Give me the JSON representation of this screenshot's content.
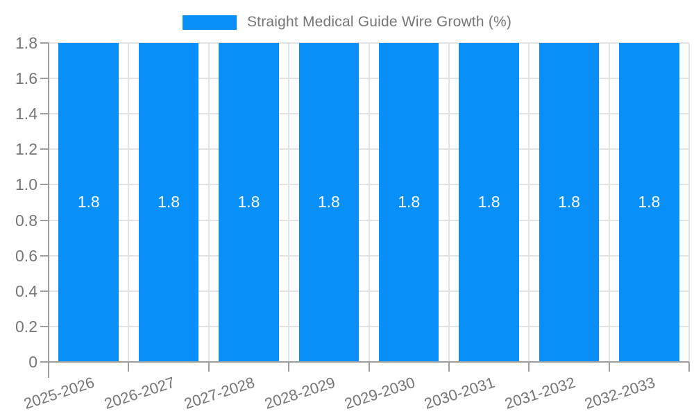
{
  "legend": {
    "label": "Straight Medical Guide Wire Growth (%)"
  },
  "chart_data": {
    "type": "bar",
    "title": "",
    "xlabel": "",
    "ylabel": "",
    "categories": [
      "2025-2026",
      "2026-2027",
      "2027-2028",
      "2028-2029",
      "2029-2030",
      "2030-2031",
      "2031-2032",
      "2032-2033"
    ],
    "series": [
      {
        "name": "Straight Medical Guide Wire Growth (%)",
        "values": [
          1.8,
          1.8,
          1.8,
          1.8,
          1.8,
          1.8,
          1.8,
          1.8
        ]
      }
    ],
    "value_labels": [
      "1.8",
      "1.8",
      "1.8",
      "1.8",
      "1.8",
      "1.8",
      "1.8",
      "1.8"
    ],
    "ylim": [
      0,
      1.8
    ],
    "y_ticks": [
      {
        "value": 0,
        "label": "0"
      },
      {
        "value": 0.2,
        "label": "0.2"
      },
      {
        "value": 0.4,
        "label": "0.4"
      },
      {
        "value": 0.6,
        "label": "0.6"
      },
      {
        "value": 0.8,
        "label": "0.8"
      },
      {
        "value": 1.0,
        "label": "1.0"
      },
      {
        "value": 1.2,
        "label": "1.2"
      },
      {
        "value": 1.4,
        "label": "1.4"
      },
      {
        "value": 1.6,
        "label": "1.6"
      },
      {
        "value": 1.8,
        "label": "1.8"
      }
    ],
    "grid": true,
    "legend_position": "top",
    "colors": {
      "bar": "#0890F8",
      "bar_label": "#FFFFFF",
      "axis_text": "#757575",
      "axis_line": "#9E9E9E",
      "gridline": "#E3E3E3",
      "background": "#FFFFFF"
    }
  }
}
